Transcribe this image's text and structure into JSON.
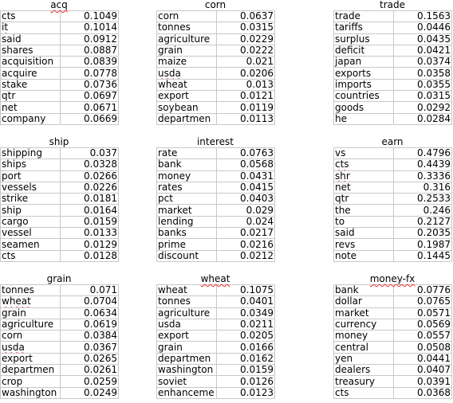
{
  "tables": [
    {
      "title": "acq",
      "rows": [
        [
          "cts",
          "0.1049"
        ],
        [
          "it",
          "0.1014"
        ],
        [
          "said",
          "0.0912"
        ],
        [
          "shares",
          "0.0887"
        ],
        [
          "acquisition",
          "0.0839"
        ],
        [
          "acquire",
          "0.0778"
        ],
        [
          "stake",
          "0.0736"
        ],
        [
          "qtr",
          "0.0697"
        ],
        [
          "net",
          "0.0671"
        ],
        [
          "company",
          "0.0669"
        ]
      ]
    },
    {
      "title": "corn",
      "rows": [
        [
          "corn",
          "0.0637"
        ],
        [
          "tonnes",
          "0.0315"
        ],
        [
          "agriculture",
          "0.0229"
        ],
        [
          "grain",
          "0.0222"
        ],
        [
          "maize",
          "0.021"
        ],
        [
          "usda",
          "0.0206"
        ],
        [
          "wheat",
          "0.013"
        ],
        [
          "export",
          "0.0121"
        ],
        [
          "soybean",
          "0.0119"
        ],
        [
          "departmen",
          "0.0113"
        ]
      ]
    },
    {
      "title": "trade",
      "rows": [
        [
          "trade",
          "0.1563"
        ],
        [
          "tariffs",
          "0.0446"
        ],
        [
          "surplus",
          "0.0435"
        ],
        [
          "deficit",
          "0.0421"
        ],
        [
          "japan",
          "0.0374"
        ],
        [
          "exports",
          "0.0358"
        ],
        [
          "imports",
          "0.0355"
        ],
        [
          "countries",
          "0.0315"
        ],
        [
          "goods",
          "0.0292"
        ],
        [
          "he",
          "0.0284"
        ]
      ]
    },
    {
      "title": "ship",
      "rows": [
        [
          "shipping",
          "0.037"
        ],
        [
          "ships",
          "0.0328"
        ],
        [
          "port",
          "0.0266"
        ],
        [
          "vessels",
          "0.0226"
        ],
        [
          "strike",
          "0.0181"
        ],
        [
          "ship",
          "0.0164"
        ],
        [
          "cargo",
          "0.0159"
        ],
        [
          "vessel",
          "0.0133"
        ],
        [
          "seamen",
          "0.0129"
        ],
        [
          "cts",
          "0.0128"
        ]
      ]
    },
    {
      "title": "interest",
      "rows": [
        [
          "rate",
          "0.0763"
        ],
        [
          "bank",
          "0.0568"
        ],
        [
          "money",
          "0.0431"
        ],
        [
          "rates",
          "0.0415"
        ],
        [
          "pct",
          "0.0403"
        ],
        [
          "market",
          "0.029"
        ],
        [
          "lending",
          "0.024"
        ],
        [
          "banks",
          "0.0217"
        ],
        [
          "prime",
          "0.0216"
        ],
        [
          "discount",
          "0.0212"
        ]
      ]
    },
    {
      "title": "earn",
      "rows": [
        [
          "vs",
          "0.4796"
        ],
        [
          "cts",
          "0.4439"
        ],
        [
          "shr",
          "0.3336"
        ],
        [
          "net",
          "0.316"
        ],
        [
          "qtr",
          "0.2533"
        ],
        [
          "the",
          "0.246"
        ],
        [
          "to",
          "0.2127"
        ],
        [
          "said",
          "0.2035"
        ],
        [
          "revs",
          "0.1987"
        ],
        [
          "note",
          "0.1445"
        ]
      ]
    },
    {
      "title": "grain",
      "rows": [
        [
          "tonnes",
          "0.071"
        ],
        [
          "wheat",
          "0.0704"
        ],
        [
          "grain",
          "0.0634"
        ],
        [
          "agriculture",
          "0.0619"
        ],
        [
          "corn",
          "0.0384"
        ],
        [
          "usda",
          "0.0367"
        ],
        [
          "export",
          "0.0265"
        ],
        [
          "departmen",
          "0.0261"
        ],
        [
          "crop",
          "0.0259"
        ],
        [
          "washington",
          "0.0249"
        ]
      ]
    },
    {
      "title": "wheat",
      "rows": [
        [
          "wheat",
          "0.1075"
        ],
        [
          "tonnes",
          "0.0401"
        ],
        [
          "agriculture",
          "0.0349"
        ],
        [
          "usda",
          "0.0211"
        ],
        [
          "export",
          "0.0205"
        ],
        [
          "grain",
          "0.0166"
        ],
        [
          "departmen",
          "0.0162"
        ],
        [
          "washington",
          "0.0159"
        ],
        [
          "soviet",
          "0.0126"
        ],
        [
          "enhanceme",
          "0.0123"
        ]
      ]
    },
    {
      "title": "money-fx",
      "rows": [
        [
          "bank",
          "0.0776"
        ],
        [
          "dollar",
          "0.0765"
        ],
        [
          "market",
          "0.0571"
        ],
        [
          "currency",
          "0.0569"
        ],
        [
          "money",
          "0.0557"
        ],
        [
          "central",
          "0.0508"
        ],
        [
          "yen",
          "0.0441"
        ],
        [
          "dealers",
          "0.0407"
        ],
        [
          "treasury",
          "0.0391"
        ],
        [
          "cts",
          "0.0368"
        ]
      ]
    }
  ]
}
